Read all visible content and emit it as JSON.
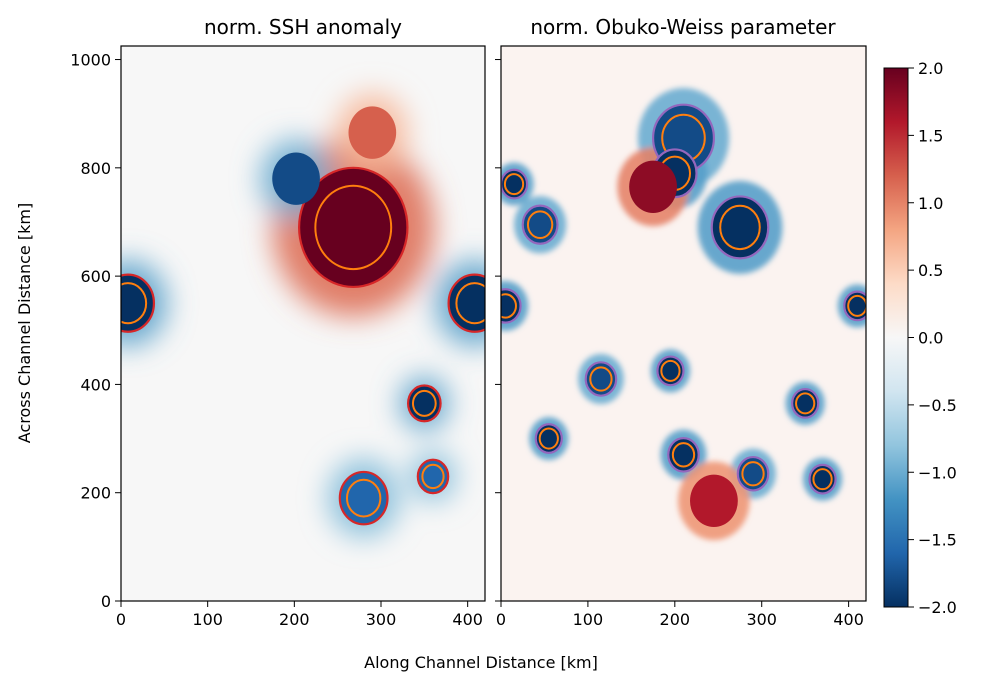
{
  "chart_data": [
    {
      "type": "heatmap",
      "title": "norm. SSH anomaly",
      "xlabel": "Along Channel Distance [km]",
      "ylabel": "Across Channel Distance [km]",
      "xlim": [
        0,
        420
      ],
      "ylim": [
        0,
        1025
      ],
      "x_ticks": [
        0,
        100,
        200,
        300,
        400
      ],
      "y_ticks": [
        0,
        200,
        400,
        600,
        800,
        1000
      ],
      "contour_colors": [
        "#d62728",
        "#ff7f0e"
      ],
      "features": [
        {
          "x": 268,
          "y": 690,
          "value": 2.0,
          "contour_km": 50
        },
        {
          "x": 8,
          "y": 550,
          "value": -2.0,
          "contour_km": 24
        },
        {
          "x": 408,
          "y": 550,
          "value": -2.0,
          "contour_km": 24
        },
        {
          "x": 350,
          "y": 365,
          "value": -2.0,
          "contour_km": 15
        },
        {
          "x": 290,
          "y": 865,
          "value": 1.2,
          "contour_km": 0
        },
        {
          "x": 202,
          "y": 780,
          "value": -1.8,
          "contour_km": 0
        },
        {
          "x": 360,
          "y": 230,
          "value": -1.6,
          "contour_km": 14
        },
        {
          "x": 280,
          "y": 190,
          "value": -1.6,
          "contour_km": 22
        }
      ]
    },
    {
      "type": "heatmap",
      "title": "norm. Obuko-Weiss parameter",
      "xlim": [
        0,
        420
      ],
      "ylim": [
        0,
        1025
      ],
      "x_ticks": [
        0,
        100,
        200,
        300,
        400
      ],
      "contour_colors": [
        "#9467bd",
        "#ff7f0e"
      ],
      "features": [
        {
          "x": 275,
          "y": 690,
          "value": -2.0,
          "contour_km": 26
        },
        {
          "x": 210,
          "y": 855,
          "value": -1.8,
          "contour_km": 28
        },
        {
          "x": 200,
          "y": 790,
          "value": -2.0,
          "contour_km": 20
        },
        {
          "x": 15,
          "y": 770,
          "value": -2.0,
          "contour_km": 12
        },
        {
          "x": 45,
          "y": 695,
          "value": -1.8,
          "contour_km": 16
        },
        {
          "x": 5,
          "y": 545,
          "value": -2.0,
          "contour_km": 14
        },
        {
          "x": 410,
          "y": 545,
          "value": -2.0,
          "contour_km": 12
        },
        {
          "x": 350,
          "y": 365,
          "value": -2.0,
          "contour_km": 12
        },
        {
          "x": 115,
          "y": 410,
          "value": -1.8,
          "contour_km": 14
        },
        {
          "x": 195,
          "y": 425,
          "value": -2.0,
          "contour_km": 12
        },
        {
          "x": 210,
          "y": 270,
          "value": -2.0,
          "contour_km": 14
        },
        {
          "x": 290,
          "y": 235,
          "value": -1.8,
          "contour_km": 14
        },
        {
          "x": 370,
          "y": 225,
          "value": -2.0,
          "contour_km": 12
        },
        {
          "x": 55,
          "y": 300,
          "value": -2.0,
          "contour_km": 12
        },
        {
          "x": 245,
          "y": 185,
          "value": 1.6,
          "contour_km": 0
        },
        {
          "x": 175,
          "y": 765,
          "value": 1.8,
          "contour_km": 0
        }
      ]
    }
  ],
  "colorbar": {
    "min": -2.0,
    "max": 2.0,
    "ticks": [
      "2.0",
      "1.5",
      "1.0",
      "0.5",
      "0.0",
      "−0.5",
      "−1.0",
      "−1.5",
      "−2.0"
    ],
    "colormap": "RdBu_r",
    "colors": [
      "#053061",
      "#2166ac",
      "#4393c3",
      "#92c5de",
      "#d1e5f0",
      "#f7f7f7",
      "#fddbc7",
      "#f4a582",
      "#d6604d",
      "#b2182b",
      "#67001f"
    ]
  }
}
